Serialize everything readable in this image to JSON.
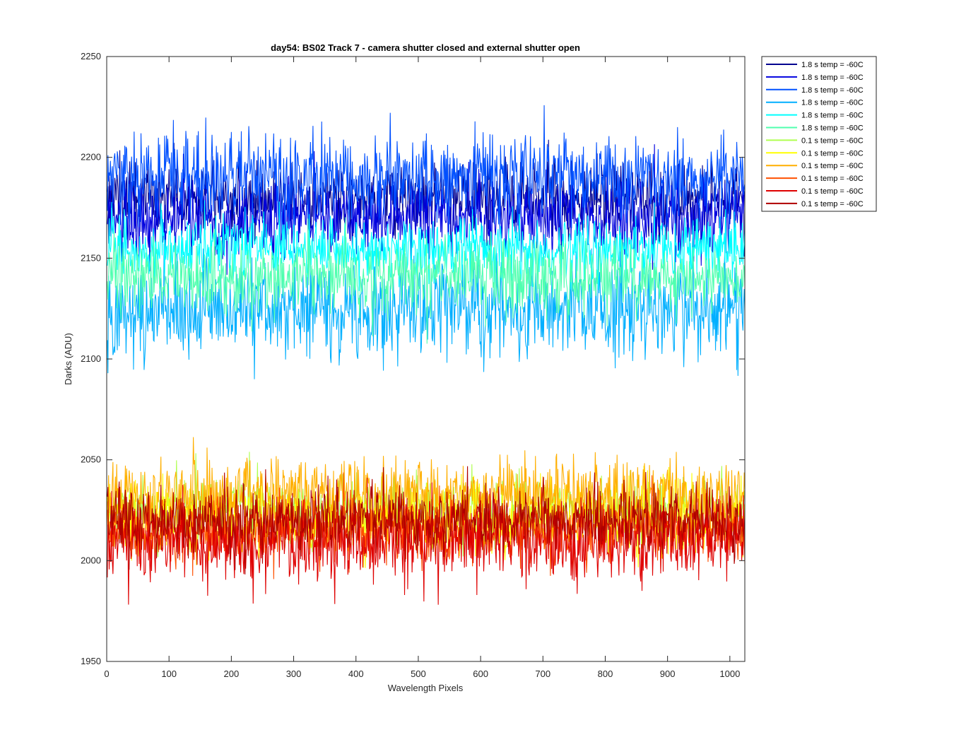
{
  "chart_data": {
    "type": "line",
    "title": "day54: BS02  Track 7 - camera shutter closed and external shutter open",
    "xlabel": "Wavelength Pixels",
    "ylabel": "Darks (ADU)",
    "xlim": [
      0,
      1024
    ],
    "ylim": [
      1950,
      2250
    ],
    "xticks": [
      0,
      100,
      200,
      300,
      400,
      500,
      600,
      700,
      800,
      900,
      1000
    ],
    "yticks": [
      1950,
      2000,
      2050,
      2100,
      2150,
      2200,
      2250
    ],
    "x": {
      "start": 1,
      "end": 1024,
      "step": 1
    },
    "grid": false,
    "legend_position": "outside-top-right",
    "note": "Each series is a noisy dark-frame trace; values summarized as mean level and approximate noise amplitude read from the plot.",
    "series": [
      {
        "name": "1.8 s temp = -60C",
        "color": "#00008F",
        "mean": 2180,
        "noise": 9,
        "min": 2150,
        "max": 2215
      },
      {
        "name": "1.8 s temp = -60C",
        "color": "#0000DF",
        "mean": 2170,
        "noise": 10,
        "min": 2125,
        "max": 2210
      },
      {
        "name": "1.8 s temp = -60C",
        "color": "#0050FF",
        "mean": 2190,
        "noise": 11,
        "min": 2145,
        "max": 2228
      },
      {
        "name": "1.8 s temp = -60C",
        "color": "#00AFFF",
        "mean": 2125,
        "noise": 12,
        "min": 2060,
        "max": 2170
      },
      {
        "name": "1.8 s temp = -60C",
        "color": "#00FFFF",
        "mean": 2155,
        "noise": 8,
        "min": 2120,
        "max": 2180
      },
      {
        "name": "1.8 s temp = -60C",
        "color": "#50FFAF",
        "mean": 2140,
        "noise": 9,
        "min": 2080,
        "max": 2175
      },
      {
        "name": "0.1 s temp = -60C",
        "color": "#AFFF50",
        "mean": 2025,
        "noise": 8,
        "min": 1975,
        "max": 2070
      },
      {
        "name": "0.1 s temp = -60C",
        "color": "#FFFF00",
        "mean": 2020,
        "noise": 9,
        "min": 1960,
        "max": 2065
      },
      {
        "name": "0.1 s temp = -60C",
        "color": "#FFAF00",
        "mean": 2033,
        "noise": 9,
        "min": 1995,
        "max": 2095
      },
      {
        "name": "0.1 s temp = -60C",
        "color": "#FF5000",
        "mean": 2015,
        "noise": 8,
        "min": 1985,
        "max": 2050
      },
      {
        "name": "0.1 s temp = -60C",
        "color": "#DF0000",
        "mean": 2010,
        "noise": 10,
        "min": 1965,
        "max": 2055
      },
      {
        "name": "0.1 s temp = -60C",
        "color": "#AF0000",
        "mean": 2020,
        "noise": 8,
        "min": 1982,
        "max": 2062
      }
    ]
  }
}
